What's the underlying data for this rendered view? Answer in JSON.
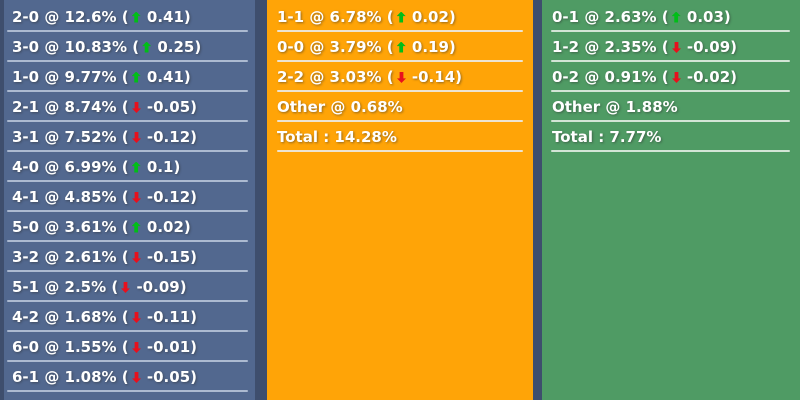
{
  "colors": {
    "page_background": "#3E4E6D",
    "delta_up": "#00BE17",
    "delta_down": "#E8101D"
  },
  "columns": [
    {
      "name": "home-scores",
      "bg": "#52688F",
      "divider_color": "#ACBAD1",
      "rows": [
        {
          "kind": "score",
          "text_before": "2-0 @ 12.6% (",
          "direction": "up",
          "text_after": " 0.41)"
        },
        {
          "kind": "score",
          "text_before": "3-0 @ 10.83% (",
          "direction": "up",
          "text_after": " 0.25)"
        },
        {
          "kind": "score",
          "text_before": "1-0 @ 9.77% (",
          "direction": "up",
          "text_after": " 0.41)"
        },
        {
          "kind": "score",
          "text_before": "2-1 @ 8.74% (",
          "direction": "down",
          "text_after": " -0.05)"
        },
        {
          "kind": "score",
          "text_before": "3-1 @ 7.52% (",
          "direction": "down",
          "text_after": " -0.12)"
        },
        {
          "kind": "score",
          "text_before": "4-0 @ 6.99% (",
          "direction": "up",
          "text_after": " 0.1)"
        },
        {
          "kind": "score",
          "text_before": "4-1 @ 4.85% (",
          "direction": "down",
          "text_after": " -0.12)"
        },
        {
          "kind": "score",
          "text_before": "5-0 @ 3.61% (",
          "direction": "up",
          "text_after": " 0.02)"
        },
        {
          "kind": "score",
          "text_before": "3-2 @ 2.61% (",
          "direction": "down",
          "text_after": " -0.15)"
        },
        {
          "kind": "score",
          "text_before": "5-1 @ 2.5% (",
          "direction": "down",
          "text_after": " -0.09)"
        },
        {
          "kind": "score",
          "text_before": "4-2 @ 1.68% (",
          "direction": "down",
          "text_after": " -0.11)"
        },
        {
          "kind": "score",
          "text_before": "6-0 @ 1.55% (",
          "direction": "down",
          "text_after": " -0.01)"
        },
        {
          "kind": "score",
          "text_before": "6-1 @ 1.08% (",
          "direction": "down",
          "text_after": " -0.05)"
        }
      ]
    },
    {
      "name": "draw-scores",
      "bg": "#FFA407",
      "divider_color": "#EDE4D2",
      "rows": [
        {
          "kind": "score",
          "text_before": "1-1 @ 6.78% (",
          "direction": "up",
          "text_after": " 0.02)"
        },
        {
          "kind": "score",
          "text_before": "0-0 @ 3.79% (",
          "direction": "up",
          "text_after": " 0.19)"
        },
        {
          "kind": "score",
          "text_before": "2-2 @ 3.03% (",
          "direction": "down",
          "text_after": " -0.14)"
        },
        {
          "kind": "other",
          "text_before": "Other @ 0.68%",
          "direction": null,
          "text_after": ""
        },
        {
          "kind": "total",
          "text_before": "Total : 14.28%",
          "direction": null,
          "text_after": ""
        }
      ]
    },
    {
      "name": "away-scores",
      "bg": "#4F9B64",
      "divider_color": "#D3E5D6",
      "rows": [
        {
          "kind": "score",
          "text_before": "0-1 @ 2.63% (",
          "direction": "up",
          "text_after": " 0.03)"
        },
        {
          "kind": "score",
          "text_before": "1-2 @ 2.35% (",
          "direction": "down",
          "text_after": " -0.09)"
        },
        {
          "kind": "score",
          "text_before": "0-2 @ 0.91% (",
          "direction": "down",
          "text_after": " -0.02)"
        },
        {
          "kind": "other",
          "text_before": "Other @ 1.88%",
          "direction": null,
          "text_after": ""
        },
        {
          "kind": "total",
          "text_before": "Total : 7.77%",
          "direction": null,
          "text_after": ""
        }
      ]
    }
  ]
}
